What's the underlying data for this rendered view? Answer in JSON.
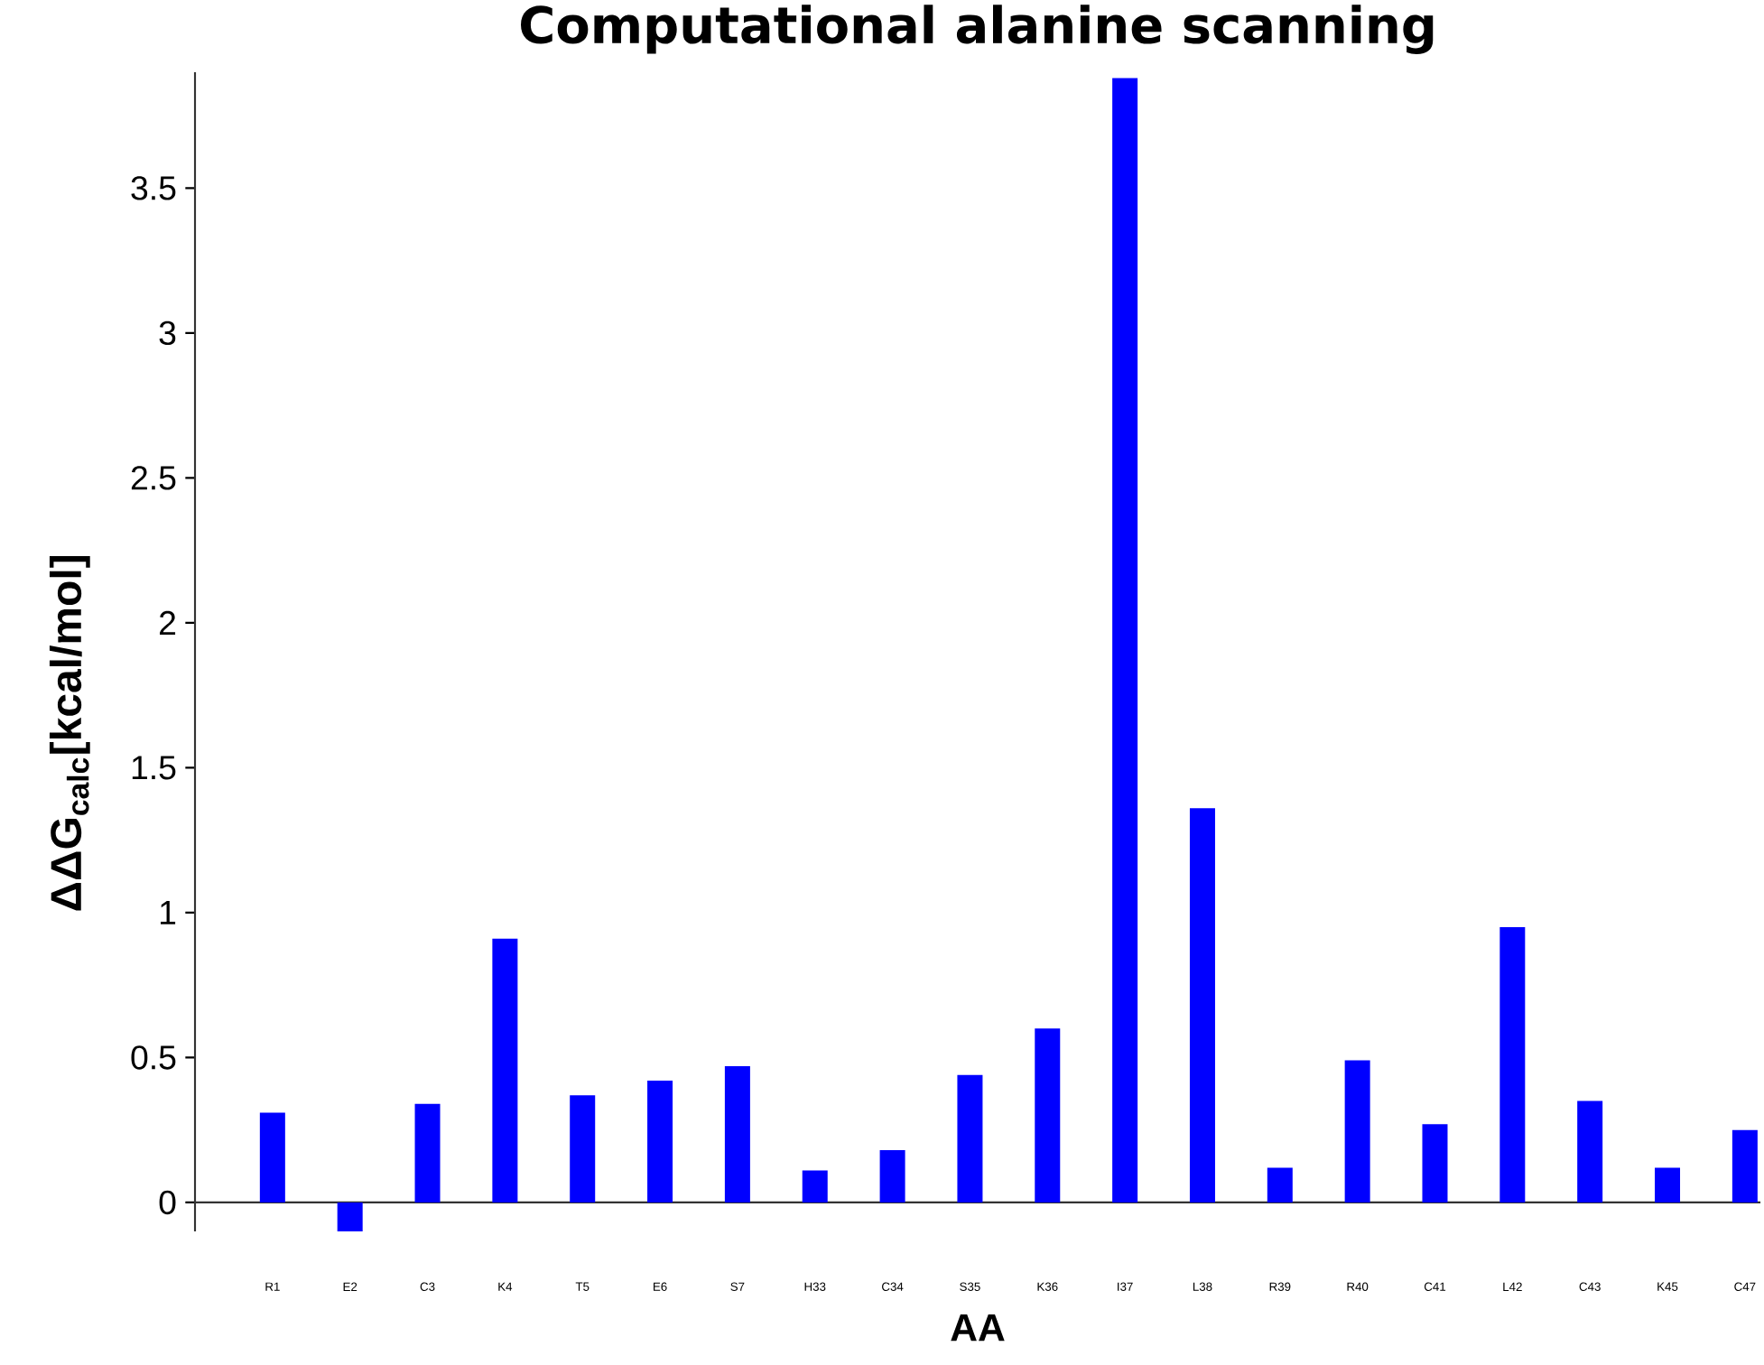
{
  "chart_data": {
    "type": "bar",
    "title": "Computational alanine scanning",
    "xlabel": "AA",
    "ylabel": "ΔΔG$_{calc}$[kcal/mol]",
    "categories": [
      "R1",
      "E2",
      "C3",
      "K4",
      "T5",
      "E6",
      "S7",
      "H33",
      "C34",
      "S35",
      "K36",
      "I37",
      "L38",
      "R39",
      "R40",
      "C41",
      "L42",
      "C43",
      "K45",
      "C47"
    ],
    "values": [
      0.31,
      -0.1,
      0.34,
      0.91,
      0.37,
      0.42,
      0.47,
      0.11,
      0.18,
      0.44,
      0.6,
      3.88,
      1.36,
      0.12,
      0.49,
      0.27,
      0.95,
      0.35,
      0.12,
      0.25
    ],
    "color": "#0000ff",
    "ylim": [
      -0.1,
      3.9
    ],
    "yticks": [
      0,
      0.5,
      1,
      1.5,
      2,
      2.5,
      3,
      3.5
    ]
  }
}
